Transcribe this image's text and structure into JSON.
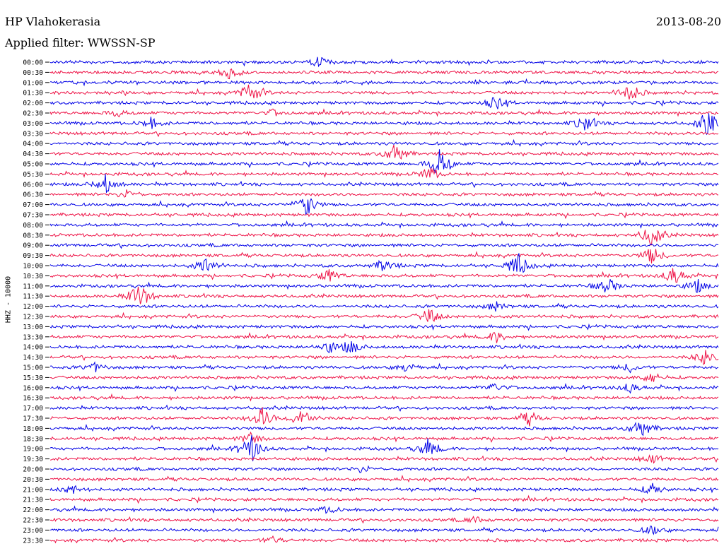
{
  "header": {
    "station": "HP Vlahokerasia",
    "date": "2013-08-20",
    "filter": "Applied filter: WWSSN-SP"
  },
  "chart_data": {
    "type": "line",
    "title": "HP Vlahokerasia",
    "ylabel": "HHZ - 10000",
    "colors": [
      "#0000e6",
      "#ee1145"
    ],
    "grid": false,
    "legend": "none",
    "rows": [
      {
        "label": "00:00",
        "events": [
          {
            "t": 12,
            "a": 0.5
          }
        ]
      },
      {
        "label": "00:30",
        "events": [
          {
            "t": 8,
            "a": 0.5
          }
        ]
      },
      {
        "label": "01:00",
        "events": []
      },
      {
        "label": "01:30",
        "events": [
          {
            "t": 9,
            "a": 1.0
          },
          {
            "t": 26,
            "a": 0.9
          }
        ]
      },
      {
        "label": "02:00",
        "events": [
          {
            "t": 20,
            "a": 0.6
          }
        ]
      },
      {
        "label": "02:30",
        "events": [
          {
            "t": 3,
            "a": 0.3
          },
          {
            "t": 10,
            "a": 0.3
          }
        ]
      },
      {
        "label": "03:00",
        "events": [
          {
            "t": 4.5,
            "a": 0.5
          },
          {
            "t": 24,
            "a": 0.7
          },
          {
            "t": 29.5,
            "a": 1.2
          }
        ]
      },
      {
        "label": "03:30",
        "events": []
      },
      {
        "label": "04:00",
        "events": []
      },
      {
        "label": "04:30",
        "events": [
          {
            "t": 15.5,
            "a": 1.0
          }
        ]
      },
      {
        "label": "05:00",
        "events": [
          {
            "t": 17.5,
            "a": 1.5
          }
        ]
      },
      {
        "label": "05:30",
        "events": [
          {
            "t": 17,
            "a": 0.6
          }
        ]
      },
      {
        "label": "06:00",
        "events": [
          {
            "t": 2.5,
            "a": 0.9
          }
        ]
      },
      {
        "label": "06:30",
        "events": [
          {
            "t": 3.5,
            "a": 0.4
          }
        ]
      },
      {
        "label": "07:00",
        "events": [
          {
            "t": 11.5,
            "a": 1.0
          }
        ]
      },
      {
        "label": "07:30",
        "events": []
      },
      {
        "label": "08:00",
        "events": []
      },
      {
        "label": "08:30",
        "events": [
          {
            "t": 27,
            "a": 1.1
          }
        ]
      },
      {
        "label": "09:00",
        "events": []
      },
      {
        "label": "09:30",
        "events": [
          {
            "t": 27,
            "a": 0.8
          }
        ]
      },
      {
        "label": "10:00",
        "events": [
          {
            "t": 7,
            "a": 0.8
          },
          {
            "t": 15,
            "a": 0.6
          },
          {
            "t": 21,
            "a": 1.1
          }
        ]
      },
      {
        "label": "10:30",
        "events": [
          {
            "t": 12.5,
            "a": 0.6
          },
          {
            "t": 28,
            "a": 0.8
          }
        ]
      },
      {
        "label": "11:00",
        "events": [
          {
            "t": 25,
            "a": 0.7
          },
          {
            "t": 29,
            "a": 0.6
          }
        ]
      },
      {
        "label": "11:30",
        "events": [
          {
            "t": 4,
            "a": 1.3
          }
        ]
      },
      {
        "label": "12:00",
        "events": [
          {
            "t": 20,
            "a": 0.4
          }
        ]
      },
      {
        "label": "12:30",
        "events": [
          {
            "t": 17,
            "a": 0.7
          }
        ]
      },
      {
        "label": "13:00",
        "events": []
      },
      {
        "label": "13:30",
        "events": [
          {
            "t": 20,
            "a": 0.5
          }
        ]
      },
      {
        "label": "14:00",
        "events": [
          {
            "t": 12.5,
            "a": 0.5
          },
          {
            "t": 13.5,
            "a": 0.6
          }
        ]
      },
      {
        "label": "14:30",
        "events": [
          {
            "t": 29.5,
            "a": 1.0
          }
        ]
      },
      {
        "label": "15:00",
        "events": [
          {
            "t": 2,
            "a": 0.4
          },
          {
            "t": 16,
            "a": 0.4
          },
          {
            "t": 26,
            "a": 0.4
          }
        ]
      },
      {
        "label": "15:30",
        "events": [
          {
            "t": 27,
            "a": 0.5
          }
        ]
      },
      {
        "label": "16:00",
        "events": [
          {
            "t": 20,
            "a": 0.4
          },
          {
            "t": 26,
            "a": 0.4
          }
        ]
      },
      {
        "label": "16:30",
        "events": []
      },
      {
        "label": "17:00",
        "events": []
      },
      {
        "label": "17:30",
        "events": [
          {
            "t": 9.5,
            "a": 1.0
          },
          {
            "t": 11.3,
            "a": 1.0
          },
          {
            "t": 21.5,
            "a": 0.6
          }
        ]
      },
      {
        "label": "18:00",
        "events": [
          {
            "t": 26.5,
            "a": 0.9
          }
        ]
      },
      {
        "label": "18:30",
        "events": [
          {
            "t": 9,
            "a": 0.5
          }
        ]
      },
      {
        "label": "19:00",
        "events": [
          {
            "t": 9,
            "a": 1.3
          },
          {
            "t": 17,
            "a": 0.8
          }
        ]
      },
      {
        "label": "19:30",
        "events": [
          {
            "t": 27,
            "a": 0.4
          }
        ]
      },
      {
        "label": "20:00",
        "events": [
          {
            "t": 14,
            "a": 0.3
          }
        ]
      },
      {
        "label": "20:30",
        "events": []
      },
      {
        "label": "21:00",
        "events": [
          {
            "t": 1,
            "a": 0.4
          },
          {
            "t": 27,
            "a": 0.5
          }
        ]
      },
      {
        "label": "21:30",
        "events": []
      },
      {
        "label": "22:00",
        "events": [
          {
            "t": 12.5,
            "a": 0.3
          }
        ]
      },
      {
        "label": "22:30",
        "events": [
          {
            "t": 19,
            "a": 0.3
          }
        ]
      },
      {
        "label": "23:00",
        "events": [
          {
            "t": 27,
            "a": 0.4
          }
        ]
      },
      {
        "label": "23:30",
        "events": [
          {
            "t": 10,
            "a": 0.3
          }
        ]
      }
    ]
  }
}
